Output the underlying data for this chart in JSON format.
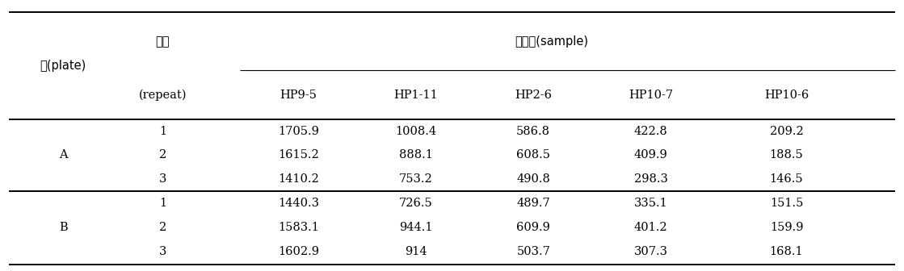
{
  "col_headers_row1_left": [
    "판(plate)",
    "반복\n(repeat)"
  ],
  "col_headers_row1_right": "시료명(sample)",
  "col_headers_row2": [
    "HP9-5",
    "HP1-11",
    "HP2-6",
    "HP10-7",
    "HP10-6"
  ],
  "rows": [
    [
      "A",
      "1",
      "1705.9",
      "1008.4",
      "586.8",
      "422.8",
      "209.2"
    ],
    [
      "",
      "2",
      "1615.2",
      "888.1",
      "608.5",
      "409.9",
      "188.5"
    ],
    [
      "",
      "3",
      "1410.2",
      "753.2",
      "490.8",
      "298.3",
      "146.5"
    ],
    [
      "B",
      "1",
      "1440.3",
      "726.5",
      "489.7",
      "335.1",
      "151.5"
    ],
    [
      "",
      "2",
      "1583.1",
      "944.1",
      "609.9",
      "401.2",
      "159.9"
    ],
    [
      "",
      "3",
      "1602.9",
      "914",
      "503.7",
      "307.3",
      "168.1"
    ]
  ],
  "background_color": "#ffffff",
  "text_color": "#000000",
  "line_color": "#000000",
  "font_size": 10.5
}
